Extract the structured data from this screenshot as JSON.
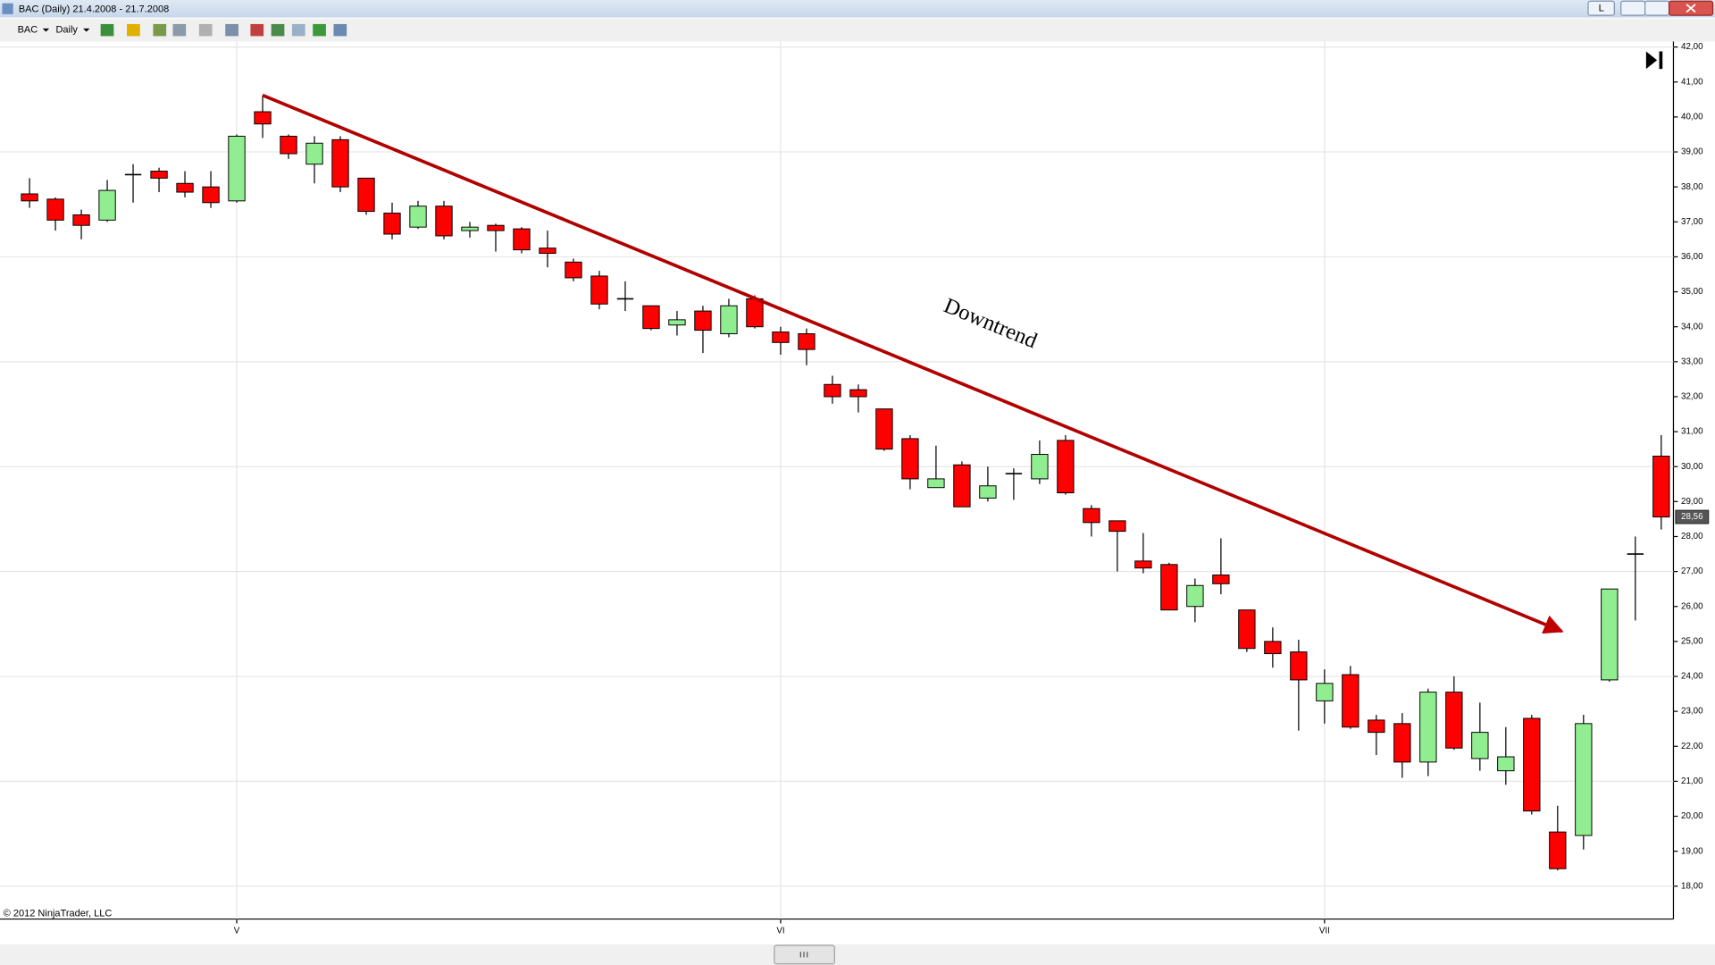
{
  "window": {
    "title": "BAC (Daily)  21.4.2008 - 21.7.2008",
    "button": "L"
  },
  "toolbar": {
    "symbol": "BAC",
    "interval": "Daily"
  },
  "footer": {
    "copyright": "© 2012 NinjaTrader, LLC"
  },
  "chart_data": {
    "type": "candlestick",
    "annotation": "Downtrend",
    "categories": [
      null,
      null,
      null,
      null,
      null,
      null,
      null,
      null,
      "V",
      null,
      null,
      null,
      null,
      null,
      null,
      null,
      null,
      null,
      null,
      null,
      null,
      null,
      null,
      null,
      null,
      null,
      null,
      null,
      null,
      "VI",
      null,
      null,
      null,
      null,
      null,
      null,
      null,
      null,
      null,
      null,
      null,
      null,
      null,
      null,
      null,
      null,
      null,
      null,
      null,
      null,
      "VII",
      null,
      null,
      null,
      null,
      null,
      null,
      null,
      null,
      null,
      null,
      null,
      null,
      null
    ],
    "open": [
      37.8,
      37.65,
      37.2,
      37.05,
      38.35,
      38.45,
      38.1,
      38.0,
      37.6,
      40.15,
      39.45,
      38.65,
      39.35,
      38.25,
      37.25,
      36.85,
      37.45,
      36.75,
      36.9,
      36.8,
      36.25,
      35.85,
      35.45,
      34.8,
      34.6,
      34.05,
      34.45,
      33.8,
      34.8,
      33.85,
      33.8,
      32.35,
      32.2,
      31.65,
      30.8,
      29.4,
      30.05,
      29.1,
      29.8,
      29.65,
      30.75,
      28.8,
      28.45,
      27.3,
      27.2,
      26.0,
      26.9,
      25.9,
      25.0,
      24.7,
      23.3,
      24.05,
      22.75,
      22.65,
      21.55,
      23.55,
      21.65,
      21.3,
      22.8,
      19.55,
      19.45,
      23.9,
      27.5,
      30.3
    ],
    "high": [
      38.25,
      37.7,
      37.35,
      38.2,
      38.65,
      38.55,
      38.45,
      38.45,
      39.5,
      40.6,
      39.5,
      39.45,
      39.45,
      38.25,
      37.55,
      37.6,
      37.6,
      37.0,
      36.95,
      36.85,
      36.75,
      35.95,
      35.6,
      35.3,
      34.6,
      34.45,
      34.6,
      34.8,
      34.9,
      34.0,
      33.95,
      32.6,
      32.35,
      31.65,
      30.9,
      30.6,
      30.15,
      30.0,
      29.95,
      30.75,
      30.9,
      28.9,
      28.45,
      28.1,
      27.25,
      26.8,
      27.95,
      25.9,
      25.4,
      25.05,
      24.2,
      24.3,
      22.9,
      22.95,
      23.65,
      24.0,
      23.25,
      22.55,
      22.9,
      20.3,
      22.9,
      26.5,
      28.0,
      30.9
    ],
    "low": [
      37.4,
      36.75,
      36.5,
      37.0,
      37.55,
      37.85,
      37.7,
      37.4,
      37.55,
      39.4,
      38.8,
      38.1,
      37.85,
      37.2,
      36.5,
      36.8,
      36.5,
      36.55,
      36.15,
      36.1,
      35.7,
      35.3,
      34.5,
      34.45,
      33.9,
      33.75,
      33.25,
      33.7,
      33.95,
      33.2,
      32.9,
      31.8,
      31.55,
      30.45,
      29.35,
      29.4,
      28.85,
      29.0,
      29.05,
      29.5,
      29.2,
      28.0,
      27.0,
      26.95,
      25.9,
      25.55,
      26.35,
      24.7,
      24.25,
      22.45,
      22.65,
      22.5,
      21.75,
      21.1,
      21.15,
      21.9,
      21.3,
      20.9,
      20.05,
      18.45,
      19.05,
      23.85,
      25.6,
      28.2
    ],
    "close": [
      37.6,
      37.05,
      36.9,
      37.9,
      38.35,
      38.25,
      37.85,
      37.55,
      39.45,
      39.8,
      38.95,
      39.25,
      38.0,
      37.3,
      36.65,
      37.45,
      36.6,
      36.85,
      36.75,
      36.2,
      36.1,
      35.4,
      34.65,
      34.8,
      33.95,
      34.2,
      33.9,
      34.6,
      34.0,
      33.55,
      33.35,
      32.0,
      32.0,
      30.5,
      29.65,
      29.65,
      28.85,
      29.45,
      29.8,
      30.35,
      29.25,
      28.4,
      28.15,
      27.1,
      25.9,
      26.6,
      26.65,
      24.8,
      24.65,
      23.9,
      23.8,
      22.55,
      22.4,
      21.55,
      23.55,
      21.95,
      22.4,
      21.7,
      20.15,
      18.5,
      22.65,
      26.5,
      27.5,
      28.56
    ],
    "up_color": "#90ee90",
    "down_color": "#ff0000",
    "trend_color": "#b00000",
    "last_price": {
      "value": 28.56,
      "label": "28,56"
    },
    "ylim": [
      17.06,
      42
    ],
    "yticks": [
      {
        "value": 18,
        "label": "18,00"
      },
      {
        "value": 19,
        "label": "19,00"
      },
      {
        "value": 20,
        "label": "20,00"
      },
      {
        "value": 21,
        "label": "21,00"
      },
      {
        "value": 22,
        "label": "22,00"
      },
      {
        "value": 23,
        "label": "23,00"
      },
      {
        "value": 24,
        "label": "24,00"
      },
      {
        "value": 25,
        "label": "25,00"
      },
      {
        "value": 26,
        "label": "26,00"
      },
      {
        "value": 27,
        "label": "27,00"
      },
      {
        "value": 28,
        "label": "28,00"
      },
      {
        "value": 29,
        "label": "29,00"
      },
      {
        "value": 30,
        "label": "30,00"
      },
      {
        "value": 31,
        "label": "31,00"
      },
      {
        "value": 32,
        "label": "32,00"
      },
      {
        "value": 33,
        "label": "33,00"
      },
      {
        "value": 34,
        "label": "34,00"
      },
      {
        "value": 35,
        "label": "35,00"
      },
      {
        "value": 36,
        "label": "36,00"
      },
      {
        "value": 37,
        "label": "37,00"
      },
      {
        "value": 38,
        "label": "38,00"
      },
      {
        "value": 39,
        "label": "39,00"
      },
      {
        "value": 40,
        "label": "40,00"
      },
      {
        "value": 41,
        "label": "41,00"
      },
      {
        "value": 42,
        "label": "42,00"
      }
    ],
    "grid": true
  }
}
